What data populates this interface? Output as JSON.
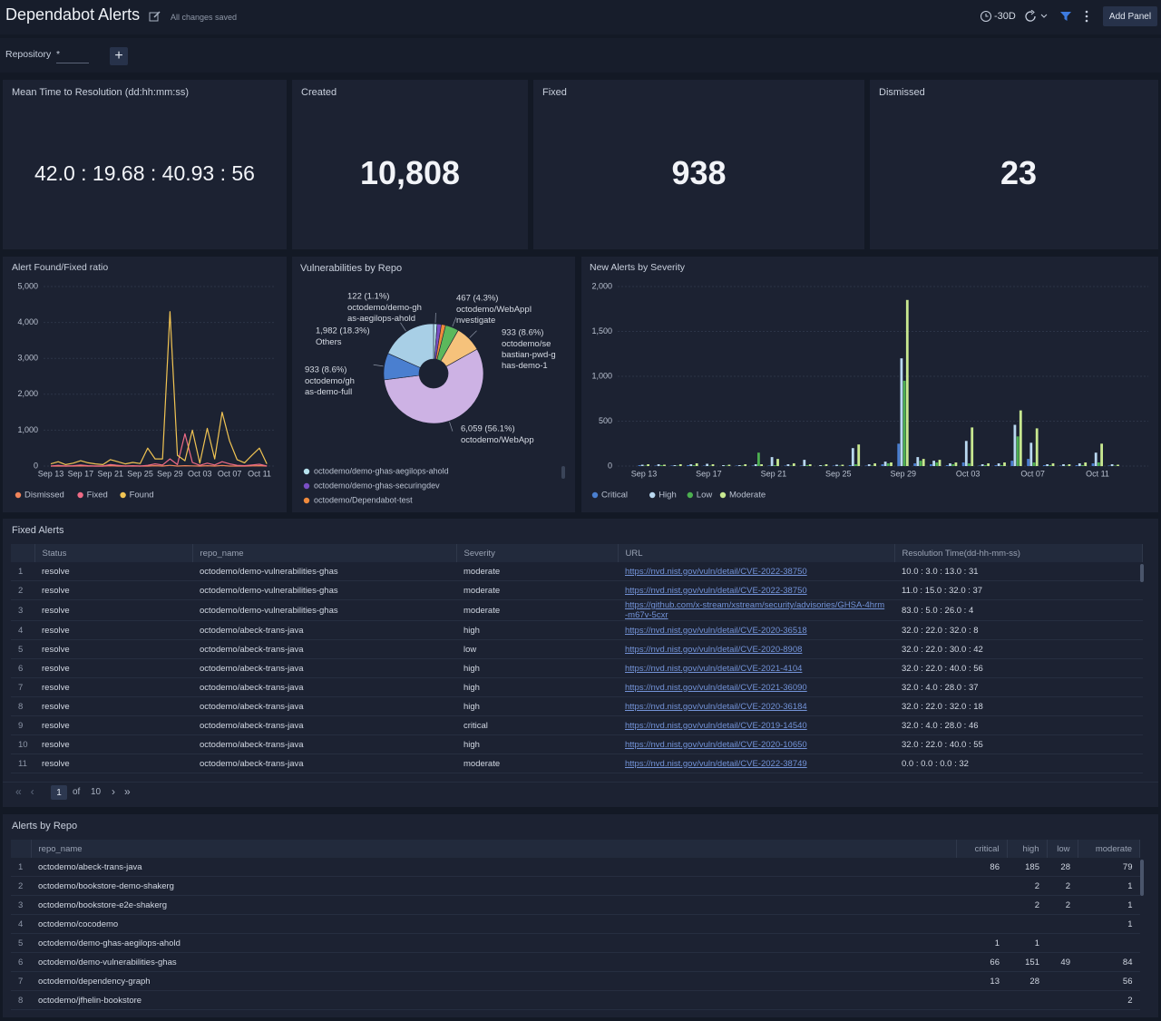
{
  "header": {
    "title": "Dependabot Alerts",
    "status": "All changes saved",
    "time_range": "-30D",
    "add_panel": "Add Panel"
  },
  "filter": {
    "label": "Repository",
    "value": "*"
  },
  "stats": [
    {
      "label": "Mean Time to Resolution (dd:hh:mm:ss)",
      "value": "42.0 : 19.68 : 40.93 : 56"
    },
    {
      "label": "Created",
      "value": "10,808"
    },
    {
      "label": "Fixed",
      "value": "938"
    },
    {
      "label": "Dismissed",
      "value": "23"
    }
  ],
  "chart_data": [
    {
      "type": "line",
      "title": "Alert Found/Fixed ratio",
      "categories": [
        "Sep 13",
        null,
        null,
        null,
        "Sep 17",
        null,
        null,
        null,
        "Sep 21",
        null,
        null,
        null,
        "Sep 25",
        null,
        null,
        null,
        "Sep 29",
        null,
        null,
        null,
        "Oct 03",
        null,
        null,
        null,
        "Oct 07",
        null,
        null,
        null,
        "Oct 11",
        null
      ],
      "series": [
        {
          "name": "Dismissed",
          "color": "#f0845a",
          "values": [
            0,
            0,
            0,
            0,
            5,
            0,
            0,
            0,
            10,
            0,
            0,
            0,
            0,
            0,
            10,
            0,
            20,
            0,
            10,
            5,
            0,
            10,
            0,
            15,
            0,
            0,
            0,
            5,
            10,
            0
          ]
        },
        {
          "name": "Fixed",
          "color": "#ef6b86",
          "values": [
            0,
            20,
            0,
            10,
            30,
            10,
            0,
            0,
            40,
            20,
            0,
            10,
            0,
            20,
            60,
            30,
            200,
            40,
            900,
            100,
            20,
            80,
            30,
            120,
            60,
            20,
            10,
            30,
            50,
            0
          ]
        },
        {
          "name": "Found",
          "color": "#f1c453",
          "values": [
            60,
            120,
            40,
            80,
            150,
            90,
            60,
            40,
            180,
            120,
            60,
            100,
            70,
            500,
            200,
            200,
            4300,
            300,
            150,
            1000,
            80,
            1050,
            200,
            1500,
            700,
            180,
            90,
            300,
            500,
            60
          ]
        }
      ],
      "ylim": [
        0,
        5000
      ],
      "yticks": [
        0,
        {
          "value": 1000,
          "label": "1,000"
        },
        {
          "value": 2000,
          "label": "2,000"
        },
        {
          "value": 3000,
          "label": "3,000"
        },
        {
          "value": 4000,
          "label": "4,000"
        },
        {
          "value": 5000,
          "label": "5,000"
        }
      ],
      "grid": true
    },
    {
      "type": "pie",
      "title": "Vulnerabilities by Repo",
      "categories": [
        "octodemo/demo-ghas-aegilops-ahold",
        "octodemo/demo-ghas-securingdev",
        "octodemo/Dependabot-test",
        "octodemo/WebAppInvestigate",
        "octodemo/sebastian-pwd-ghas-demo-1",
        "octodemo/WebApp",
        "octodemo/ghas-demo-full",
        "Others"
      ],
      "values": [
        122,
        150,
        150,
        467,
        933,
        6059,
        933,
        1982
      ],
      "value_labels": [
        "122 (1.1%)",
        null,
        null,
        "467 (4.3%)",
        "933 (8.6%)",
        "6,059 (56.1%)",
        "933 (8.6%)",
        "1,982 (18.3%)"
      ],
      "colors": [
        "#b7e2ee",
        "#7a4fc4",
        "#f08a3c",
        "#5cb85c",
        "#f6c27b",
        "#cdb2e4",
        "#4a7fd0",
        "#a8cfe6"
      ],
      "hole": true
    },
    {
      "type": "bar",
      "title": "New Alerts by Severity",
      "categories": [
        "Sep 13",
        null,
        null,
        null,
        "Sep 17",
        null,
        null,
        null,
        "Sep 21",
        null,
        null,
        null,
        "Sep 25",
        null,
        null,
        null,
        "Sep 29",
        null,
        null,
        null,
        "Oct 03",
        null,
        null,
        null,
        "Oct 07",
        null,
        null,
        null,
        "Oct 11",
        null
      ],
      "series": [
        {
          "name": "Critical",
          "color": "#4a7fd0",
          "values": [
            10,
            5,
            5,
            10,
            5,
            0,
            5,
            5,
            5,
            5,
            5,
            0,
            5,
            10,
            5,
            20,
            250,
            30,
            20,
            10,
            40,
            5,
            10,
            60,
            80,
            10,
            5,
            10,
            30,
            5
          ]
        },
        {
          "name": "High",
          "color": "#b9d8f0",
          "values": [
            15,
            20,
            10,
            20,
            25,
            10,
            10,
            20,
            100,
            20,
            70,
            10,
            15,
            200,
            20,
            50,
            1200,
            100,
            60,
            30,
            280,
            20,
            30,
            460,
            260,
            20,
            20,
            30,
            150,
            20
          ]
        },
        {
          "name": "Low",
          "color": "#4caf50",
          "values": [
            5,
            10,
            5,
            10,
            5,
            5,
            5,
            150,
            10,
            5,
            10,
            5,
            5,
            20,
            5,
            30,
            950,
            60,
            40,
            20,
            30,
            10,
            10,
            330,
            40,
            10,
            5,
            10,
            40,
            5
          ]
        },
        {
          "name": "Moderate",
          "color": "#c8e890",
          "values": [
            20,
            15,
            20,
            30,
            20,
            15,
            20,
            20,
            80,
            30,
            20,
            20,
            15,
            240,
            30,
            40,
            1850,
            80,
            70,
            40,
            430,
            30,
            40,
            620,
            420,
            30,
            20,
            40,
            250,
            15
          ]
        }
      ],
      "ylim": [
        0,
        2000
      ],
      "yticks": [
        0,
        500,
        {
          "value": 1000,
          "label": "1,000"
        },
        {
          "value": 1500,
          "label": "1,500"
        },
        {
          "value": 2000,
          "label": "2,000"
        }
      ],
      "grid": true
    }
  ],
  "fixed_alerts": {
    "title": "Fixed Alerts",
    "columns": [
      "Status",
      "repo_name",
      "Severity",
      "URL",
      "Resolution Time(dd-hh-mm-ss)"
    ],
    "rows": [
      [
        1,
        "resolve",
        "octodemo/demo-vulnerabilities-ghas",
        "moderate",
        "https://nvd.nist.gov/vuln/detail/CVE-2022-38750",
        "10.0 : 3.0 : 13.0 : 31"
      ],
      [
        2,
        "resolve",
        "octodemo/demo-vulnerabilities-ghas",
        "moderate",
        "https://nvd.nist.gov/vuln/detail/CVE-2022-38750",
        "11.0 : 15.0 : 32.0 : 37"
      ],
      [
        3,
        "resolve",
        "octodemo/demo-vulnerabilities-ghas",
        "moderate",
        "https://github.com/x-stream/xstream/security/advisories/GHSA-4hrm-m67v-5cxr",
        "83.0 : 5.0 : 26.0 : 4"
      ],
      [
        4,
        "resolve",
        "octodemo/abeck-trans-java",
        "high",
        "https://nvd.nist.gov/vuln/detail/CVE-2020-36518",
        "32.0 : 22.0 : 32.0 : 8"
      ],
      [
        5,
        "resolve",
        "octodemo/abeck-trans-java",
        "low",
        "https://nvd.nist.gov/vuln/detail/CVE-2020-8908",
        "32.0 : 22.0 : 30.0 : 42"
      ],
      [
        6,
        "resolve",
        "octodemo/abeck-trans-java",
        "high",
        "https://nvd.nist.gov/vuln/detail/CVE-2021-4104",
        "32.0 : 22.0 : 40.0 : 56"
      ],
      [
        7,
        "resolve",
        "octodemo/abeck-trans-java",
        "high",
        "https://nvd.nist.gov/vuln/detail/CVE-2021-36090",
        "32.0 : 4.0 : 28.0 : 37"
      ],
      [
        8,
        "resolve",
        "octodemo/abeck-trans-java",
        "high",
        "https://nvd.nist.gov/vuln/detail/CVE-2020-36184",
        "32.0 : 22.0 : 32.0 : 18"
      ],
      [
        9,
        "resolve",
        "octodemo/abeck-trans-java",
        "critical",
        "https://nvd.nist.gov/vuln/detail/CVE-2019-14540",
        "32.0 : 4.0 : 28.0 : 46"
      ],
      [
        10,
        "resolve",
        "octodemo/abeck-trans-java",
        "high",
        "https://nvd.nist.gov/vuln/detail/CVE-2020-10650",
        "32.0 : 22.0 : 40.0 : 55"
      ],
      [
        11,
        "resolve",
        "octodemo/abeck-trans-java",
        "moderate",
        "https://nvd.nist.gov/vuln/detail/CVE-2022-38749",
        "0.0 : 0.0 : 0.0 : 32"
      ]
    ],
    "pagination": {
      "page": 1,
      "of": "of",
      "pages": 10
    }
  },
  "alerts_by_repo": {
    "title": "Alerts by Repo",
    "columns": [
      "repo_name",
      "critical",
      "high",
      "low",
      "moderate"
    ],
    "rows": [
      [
        1,
        "octodemo/abeck-trans-java",
        86,
        185,
        28,
        79
      ],
      [
        2,
        "octodemo/bookstore-demo-shakerg",
        null,
        2,
        2,
        1
      ],
      [
        3,
        "octodemo/bookstore-e2e-shakerg",
        null,
        2,
        2,
        1
      ],
      [
        4,
        "octodemo/cocodemo",
        null,
        null,
        null,
        1
      ],
      [
        5,
        "octodemo/demo-ghas-aegilops-ahold",
        1,
        1,
        null,
        null
      ],
      [
        6,
        "octodemo/demo-vulnerabilities-ghas",
        66,
        151,
        49,
        84
      ],
      [
        7,
        "octodemo/dependency-graph",
        13,
        28,
        null,
        56
      ],
      [
        8,
        "octodemo/jfhelin-bookstore",
        null,
        null,
        null,
        2
      ]
    ]
  }
}
